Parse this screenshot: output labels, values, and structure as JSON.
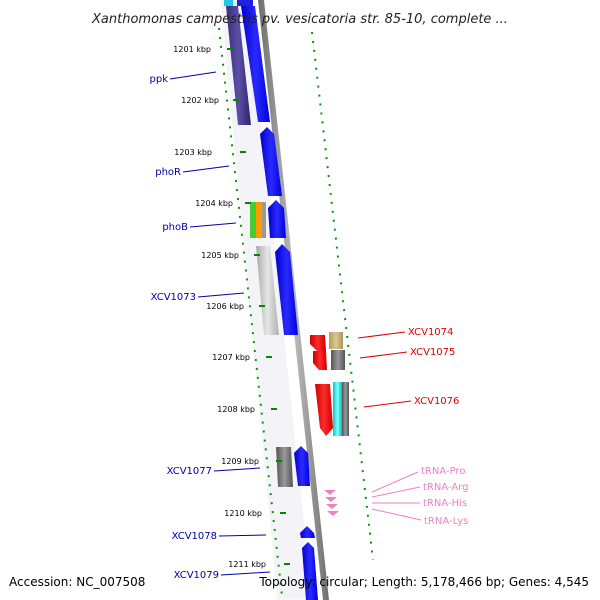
{
  "title": "Xanthomonas campestris pv. vesicatoria str. 85-10, complete ...",
  "footer": {
    "accession": "Accession: NC_007508",
    "summary": "Topology: circular; Length: 5,178,466 bp; Genes: 4,545"
  },
  "colors": {
    "plus_strand_label": "#0000aa",
    "minus_strand_label": "#dd0000",
    "trna_label": "#f080c0",
    "tick_green": "#008800",
    "backbone": "#888888"
  },
  "position_ticks": [
    "1201 kbp",
    "1202 kbp",
    "1203 kbp",
    "1204 kbp",
    "1205 kbp",
    "1206 kbp",
    "1207 kbp",
    "1208 kbp",
    "1209 kbp",
    "1210 kbp",
    "1211 kbp"
  ],
  "genes_left": [
    {
      "label": "ppk",
      "color": "#0000aa"
    },
    {
      "label": "phoR",
      "color": "#0000aa"
    },
    {
      "label": "phoB",
      "color": "#0000aa"
    },
    {
      "label": "XCV1073",
      "color": "#0000aa"
    },
    {
      "label": "XCV1077",
      "color": "#0000aa"
    },
    {
      "label": "XCV1078",
      "color": "#0000aa"
    },
    {
      "label": "XCV1079",
      "color": "#0000aa"
    }
  ],
  "genes_right": [
    {
      "label": "XCV1074",
      "color": "#dd0000"
    },
    {
      "label": "XCV1075",
      "color": "#dd0000"
    },
    {
      "label": "XCV1076",
      "color": "#dd0000"
    },
    {
      "label": "tRNA-Pro",
      "color": "#f080c0"
    },
    {
      "label": "tRNA-Arg",
      "color": "#f080c0"
    },
    {
      "label": "tRNA-His",
      "color": "#f080c0"
    },
    {
      "label": "tRNA-Lys",
      "color": "#f080c0"
    }
  ]
}
